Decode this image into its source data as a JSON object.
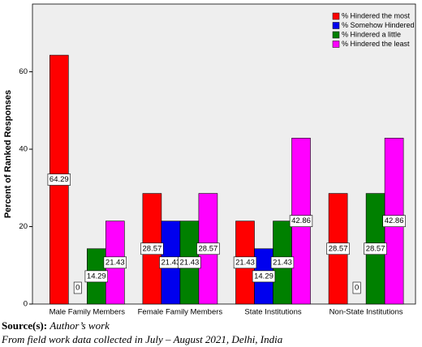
{
  "chart_data": {
    "type": "bar",
    "categories": [
      "Male Family Members",
      "Female Family Members",
      "State Institutions",
      "Non-State Institutions"
    ],
    "series": [
      {
        "name": "% Hindered the most",
        "color": "#ff0000",
        "values": [
          64.29,
          28.57,
          21.43,
          28.57
        ]
      },
      {
        "name": "% Somehow Hindered",
        "color": "#0000ee",
        "values": [
          0,
          21.43,
          14.29,
          0
        ]
      },
      {
        "name": "% Hindered a little",
        "color": "#008000",
        "values": [
          14.29,
          21.43,
          21.43,
          28.57
        ]
      },
      {
        "name": "% Hindered the least",
        "color": "#ff00ff",
        "values": [
          21.43,
          28.57,
          42.86,
          42.86
        ]
      }
    ],
    "ylabel": "Percent of Ranked Responses",
    "ylim": [
      0,
      77.5
    ],
    "yticks": [
      0,
      20,
      40,
      60
    ],
    "grid": false,
    "legend": "top-right"
  },
  "source": {
    "label": "Source(s):",
    "text": "Author’s work"
  },
  "note": "From field work data collected in July – August 2021, Delhi, India"
}
